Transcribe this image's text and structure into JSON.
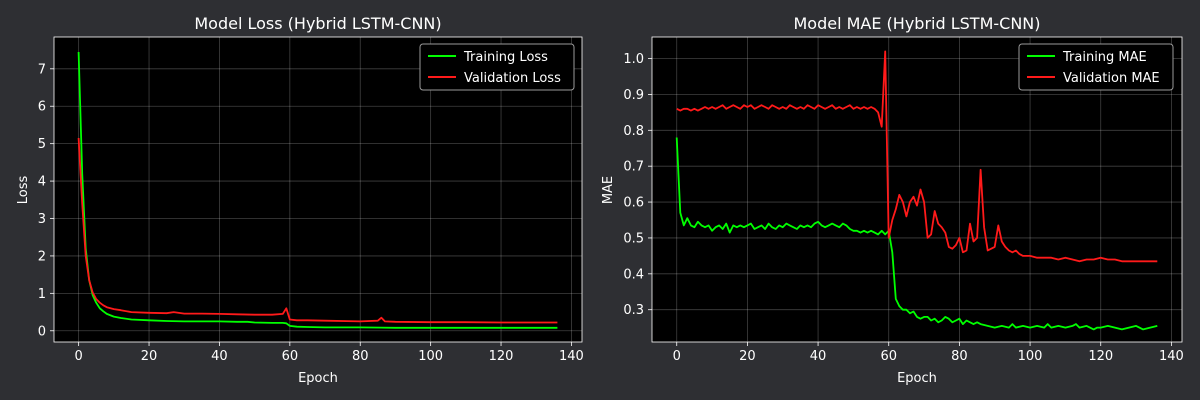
{
  "figure": {
    "background": "#2e2f33",
    "plot_background": "#000000"
  },
  "chart_data": [
    {
      "type": "line",
      "title": "Model Loss (Hybrid LSTM-CNN)",
      "xlabel": "Epoch",
      "ylabel": "Loss",
      "xlim": [
        -7,
        143
      ],
      "ylim": [
        -0.3,
        7.85
      ],
      "xticks": [
        0,
        20,
        40,
        60,
        80,
        100,
        120,
        140
      ],
      "yticks": [
        0,
        1,
        2,
        3,
        4,
        5,
        6,
        7
      ],
      "grid": true,
      "legend_position": "top-right",
      "series": [
        {
          "name": "Training Loss",
          "color": "#00ff00",
          "x": [
            0,
            1,
            2,
            3,
            4,
            5,
            6,
            7,
            8,
            10,
            12,
            15,
            20,
            25,
            30,
            35,
            40,
            45,
            48,
            50,
            55,
            58,
            59,
            60,
            62,
            65,
            70,
            80,
            90,
            100,
            110,
            120,
            130,
            136
          ],
          "y": [
            7.45,
            4.2,
            2.2,
            1.35,
            0.95,
            0.75,
            0.6,
            0.52,
            0.45,
            0.38,
            0.34,
            0.3,
            0.28,
            0.26,
            0.25,
            0.25,
            0.25,
            0.24,
            0.24,
            0.22,
            0.21,
            0.21,
            0.2,
            0.13,
            0.11,
            0.1,
            0.09,
            0.09,
            0.08,
            0.08,
            0.08,
            0.08,
            0.08,
            0.08
          ]
        },
        {
          "name": "Validation Loss",
          "color": "#ff1a1a",
          "x": [
            0,
            1,
            2,
            3,
            4,
            5,
            6,
            7,
            8,
            10,
            12,
            15,
            20,
            25,
            27,
            30,
            35,
            40,
            45,
            50,
            55,
            58,
            59,
            60,
            62,
            65,
            70,
            80,
            85,
            86,
            87,
            90,
            100,
            110,
            120,
            130,
            136
          ],
          "y": [
            5.15,
            3.4,
            2.0,
            1.35,
            1.02,
            0.85,
            0.75,
            0.68,
            0.63,
            0.58,
            0.55,
            0.5,
            0.48,
            0.47,
            0.5,
            0.46,
            0.46,
            0.45,
            0.44,
            0.43,
            0.43,
            0.45,
            0.6,
            0.3,
            0.28,
            0.28,
            0.27,
            0.25,
            0.27,
            0.35,
            0.25,
            0.24,
            0.23,
            0.23,
            0.22,
            0.22,
            0.22
          ]
        }
      ]
    },
    {
      "type": "line",
      "title": "Model MAE (Hybrid LSTM-CNN)",
      "xlabel": "Epoch",
      "ylabel": "MAE",
      "xlim": [
        -7,
        143
      ],
      "ylim": [
        0.21,
        1.06
      ],
      "xticks": [
        0,
        20,
        40,
        60,
        80,
        100,
        120,
        140
      ],
      "yticks": [
        0.3,
        0.4,
        0.5,
        0.6,
        0.7,
        0.8,
        0.9,
        1.0
      ],
      "grid": true,
      "legend_position": "top-right",
      "series": [
        {
          "name": "Training MAE",
          "color": "#00ff00",
          "x": [
            0,
            1,
            2,
            3,
            4,
            5,
            6,
            7,
            8,
            9,
            10,
            11,
            12,
            13,
            14,
            15,
            16,
            17,
            18,
            19,
            20,
            21,
            22,
            23,
            24,
            25,
            26,
            27,
            28,
            29,
            30,
            31,
            32,
            33,
            34,
            35,
            36,
            37,
            38,
            39,
            40,
            41,
            42,
            43,
            44,
            45,
            46,
            47,
            48,
            49,
            50,
            51,
            52,
            53,
            54,
            55,
            56,
            57,
            58,
            59,
            60,
            61,
            62,
            63,
            64,
            65,
            66,
            67,
            68,
            69,
            70,
            71,
            72,
            73,
            74,
            75,
            76,
            77,
            78,
            79,
            80,
            81,
            82,
            83,
            84,
            85,
            86,
            88,
            90,
            92,
            94,
            95,
            96,
            98,
            100,
            102,
            104,
            105,
            106,
            108,
            110,
            112,
            113,
            114,
            116,
            118,
            119,
            120,
            122,
            124,
            126,
            128,
            130,
            132,
            134,
            136
          ],
          "y": [
            0.78,
            0.57,
            0.535,
            0.555,
            0.535,
            0.53,
            0.545,
            0.535,
            0.53,
            0.535,
            0.52,
            0.53,
            0.535,
            0.525,
            0.54,
            0.515,
            0.535,
            0.53,
            0.535,
            0.53,
            0.535,
            0.54,
            0.525,
            0.53,
            0.535,
            0.525,
            0.54,
            0.53,
            0.525,
            0.535,
            0.53,
            0.54,
            0.535,
            0.53,
            0.525,
            0.535,
            0.53,
            0.535,
            0.53,
            0.54,
            0.545,
            0.535,
            0.53,
            0.535,
            0.54,
            0.535,
            0.53,
            0.54,
            0.535,
            0.525,
            0.52,
            0.52,
            0.515,
            0.52,
            0.515,
            0.52,
            0.515,
            0.51,
            0.52,
            0.51,
            0.52,
            0.46,
            0.33,
            0.31,
            0.3,
            0.3,
            0.29,
            0.295,
            0.28,
            0.275,
            0.28,
            0.28,
            0.27,
            0.275,
            0.265,
            0.27,
            0.28,
            0.275,
            0.265,
            0.27,
            0.275,
            0.26,
            0.27,
            0.265,
            0.26,
            0.265,
            0.26,
            0.255,
            0.25,
            0.255,
            0.25,
            0.26,
            0.25,
            0.255,
            0.25,
            0.255,
            0.25,
            0.26,
            0.25,
            0.255,
            0.25,
            0.255,
            0.26,
            0.25,
            0.255,
            0.245,
            0.25,
            0.25,
            0.255,
            0.25,
            0.245,
            0.25,
            0.255,
            0.245,
            0.25,
            0.255
          ]
        },
        {
          "name": "Validation MAE",
          "color": "#ff1a1a",
          "x": [
            0,
            1,
            2,
            3,
            4,
            5,
            6,
            7,
            8,
            9,
            10,
            11,
            12,
            13,
            14,
            15,
            16,
            17,
            18,
            19,
            20,
            21,
            22,
            23,
            24,
            25,
            26,
            27,
            28,
            29,
            30,
            31,
            32,
            33,
            34,
            35,
            36,
            37,
            38,
            39,
            40,
            41,
            42,
            43,
            44,
            45,
            46,
            47,
            48,
            49,
            50,
            51,
            52,
            53,
            54,
            55,
            56,
            57,
            58,
            59,
            60,
            61,
            62,
            63,
            64,
            65,
            66,
            67,
            68,
            69,
            70,
            71,
            72,
            73,
            74,
            75,
            76,
            77,
            78,
            79,
            80,
            81,
            82,
            83,
            84,
            85,
            86,
            87,
            88,
            89,
            90,
            91,
            92,
            93,
            94,
            95,
            96,
            97,
            98,
            100,
            102,
            104,
            106,
            108,
            110,
            112,
            114,
            116,
            118,
            120,
            122,
            124,
            126,
            128,
            130,
            132,
            134,
            136
          ],
          "y": [
            0.86,
            0.855,
            0.86,
            0.86,
            0.855,
            0.86,
            0.855,
            0.86,
            0.865,
            0.86,
            0.865,
            0.86,
            0.865,
            0.87,
            0.86,
            0.865,
            0.87,
            0.865,
            0.86,
            0.87,
            0.865,
            0.87,
            0.86,
            0.865,
            0.87,
            0.865,
            0.86,
            0.87,
            0.865,
            0.86,
            0.865,
            0.86,
            0.87,
            0.865,
            0.86,
            0.865,
            0.86,
            0.87,
            0.865,
            0.86,
            0.87,
            0.865,
            0.86,
            0.865,
            0.87,
            0.86,
            0.865,
            0.86,
            0.865,
            0.87,
            0.86,
            0.865,
            0.86,
            0.865,
            0.86,
            0.865,
            0.86,
            0.85,
            0.81,
            1.02,
            0.5,
            0.55,
            0.58,
            0.62,
            0.6,
            0.56,
            0.6,
            0.615,
            0.59,
            0.635,
            0.6,
            0.5,
            0.51,
            0.575,
            0.54,
            0.53,
            0.515,
            0.475,
            0.47,
            0.48,
            0.5,
            0.46,
            0.465,
            0.54,
            0.49,
            0.5,
            0.69,
            0.53,
            0.465,
            0.47,
            0.475,
            0.535,
            0.49,
            0.475,
            0.465,
            0.46,
            0.465,
            0.455,
            0.45,
            0.45,
            0.445,
            0.445,
            0.445,
            0.44,
            0.445,
            0.44,
            0.435,
            0.44,
            0.44,
            0.445,
            0.44,
            0.44,
            0.435,
            0.435,
            0.435,
            0.435,
            0.435,
            0.435
          ]
        }
      ]
    }
  ]
}
